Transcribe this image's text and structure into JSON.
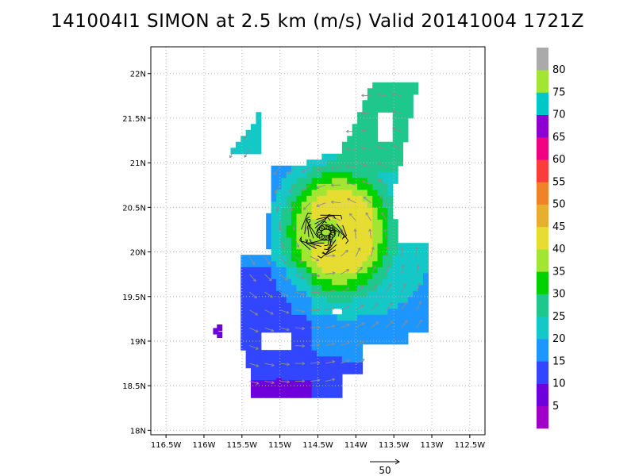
{
  "title": "141004I1 SIMON at 2.5 km (m/s) Valid 20141004 1721Z",
  "chart_data": {
    "type": "heatmap",
    "title": "141004I1 SIMON at 2.5 km (m/s) Valid 20141004 1721Z",
    "xlabel": "",
    "ylabel": "",
    "xlim": [
      -116.7,
      -112.3
    ],
    "ylim": [
      17.95,
      22.3
    ],
    "x_ticks": [
      {
        "value": -116.5,
        "label": "116.5W"
      },
      {
        "value": -116.0,
        "label": "116W"
      },
      {
        "value": -115.5,
        "label": "115.5W"
      },
      {
        "value": -115.0,
        "label": "115W"
      },
      {
        "value": -114.5,
        "label": "114.5W"
      },
      {
        "value": -114.0,
        "label": "114W"
      },
      {
        "value": -113.5,
        "label": "113.5W"
      },
      {
        "value": -113.0,
        "label": "113W"
      },
      {
        "value": -112.5,
        "label": "112.5W"
      }
    ],
    "y_ticks": [
      {
        "value": 18.0,
        "label": "18N"
      },
      {
        "value": 18.5,
        "label": "18.5N"
      },
      {
        "value": 19.0,
        "label": "19N"
      },
      {
        "value": 19.5,
        "label": "19.5N"
      },
      {
        "value": 20.0,
        "label": "20N"
      },
      {
        "value": 20.5,
        "label": "20.5N"
      },
      {
        "value": 21.0,
        "label": "21N"
      },
      {
        "value": 21.5,
        "label": "21.5N"
      },
      {
        "value": 22.0,
        "label": "22N"
      }
    ],
    "grid": true,
    "storm_center": {
      "lon": -114.35,
      "lat": 20.2
    },
    "colorbar": {
      "levels": [
        0,
        5,
        10,
        15,
        20,
        25,
        30,
        35,
        40,
        45,
        50,
        55,
        60,
        65,
        70,
        75,
        80,
        85
      ],
      "labels": [
        "5",
        "10",
        "15",
        "20",
        "25",
        "30",
        "35",
        "40",
        "45",
        "50",
        "55",
        "60",
        "65",
        "70",
        "75",
        "80"
      ],
      "colors": [
        "#a000c8",
        "#6e00dc",
        "#3246ff",
        "#1e96ff",
        "#14c8c8",
        "#1ec88c",
        "#00d200",
        "#a0e632",
        "#e6dc32",
        "#e6af2d",
        "#f08228",
        "#fa3c3c",
        "#f00082",
        "#8c00d2",
        "#00c8c8",
        "#a0e632",
        "#aaaaaa"
      ]
    },
    "wind_reference": {
      "label": "50",
      "speed": 50
    }
  }
}
